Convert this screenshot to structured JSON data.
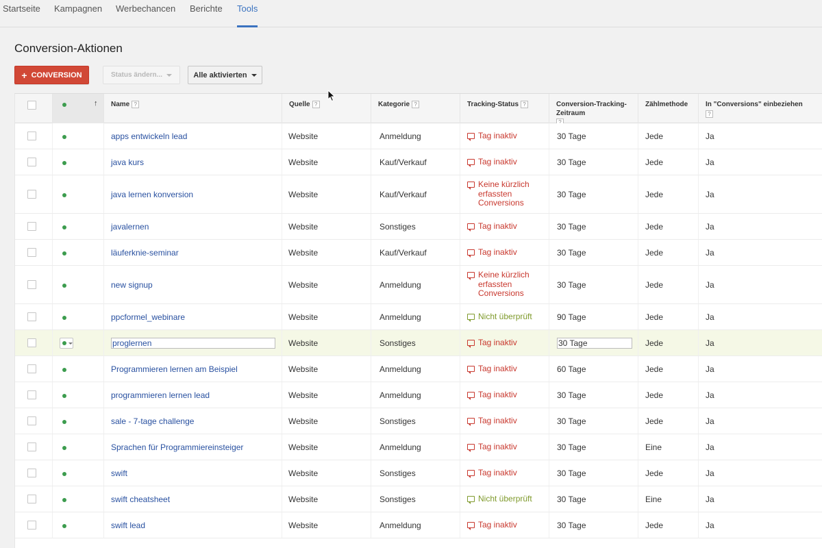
{
  "nav": {
    "tabs": [
      {
        "label": "Startseite"
      },
      {
        "label": "Kampagnen"
      },
      {
        "label": "Werbechancen"
      },
      {
        "label": "Berichte"
      },
      {
        "label": "Tools",
        "active": true
      }
    ]
  },
  "page": {
    "title": "Conversion-Aktionen"
  },
  "toolbar": {
    "add_label": "CONVERSION",
    "add_icon": "plus-icon",
    "status_label": "Status ändern...",
    "filter_label": "Alle aktivierten"
  },
  "table": {
    "columns": {
      "name": "Name",
      "source": "Quelle",
      "category": "Kategorie",
      "tracking": "Tracking-Status",
      "window": "Conversion-Tracking-Zeitraum",
      "counting": "Zählmethode",
      "include": "In \"Conversions\" einbeziehen"
    },
    "help_glyph": "?",
    "sort_arrow": "↑",
    "rows": [
      {
        "name": "apps entwickeln lead",
        "source": "Website",
        "category": "Anmeldung",
        "status": "Tag inaktiv",
        "status_type": "error",
        "window": "30 Tage",
        "counting": "Jede",
        "include": "Ja"
      },
      {
        "name": "java kurs",
        "source": "Website",
        "category": "Kauf/Verkauf",
        "status": "Tag inaktiv",
        "status_type": "error",
        "window": "30 Tage",
        "counting": "Jede",
        "include": "Ja"
      },
      {
        "name": "java lernen konversion",
        "source": "Website",
        "category": "Kauf/Verkauf",
        "status": "Keine kürzlich erfassten Conversions",
        "status_type": "error",
        "window": "30 Tage",
        "counting": "Jede",
        "include": "Ja"
      },
      {
        "name": "javalernen",
        "source": "Website",
        "category": "Sonstiges",
        "status": "Tag inaktiv",
        "status_type": "error",
        "window": "30 Tage",
        "counting": "Jede",
        "include": "Ja"
      },
      {
        "name": "läuferknie-seminar",
        "source": "Website",
        "category": "Kauf/Verkauf",
        "status": "Tag inaktiv",
        "status_type": "error",
        "window": "30 Tage",
        "counting": "Jede",
        "include": "Ja"
      },
      {
        "name": "new signup",
        "source": "Website",
        "category": "Anmeldung",
        "status": "Keine kürzlich erfassten Conversions",
        "status_type": "error",
        "window": "30 Tage",
        "counting": "Jede",
        "include": "Ja"
      },
      {
        "name": "ppcformel_webinare",
        "source": "Website",
        "category": "Anmeldung",
        "status": "Nicht überprüft",
        "status_type": "unverified",
        "window": "90 Tage",
        "counting": "Jede",
        "include": "Ja"
      },
      {
        "name": "proglernen",
        "source": "Website",
        "category": "Sonstiges",
        "status": "Tag inaktiv",
        "status_type": "error",
        "window": "30 Tage",
        "counting": "Jede",
        "include": "Ja",
        "editing": true
      },
      {
        "name": "Programmieren lernen am Beispiel",
        "source": "Website",
        "category": "Anmeldung",
        "status": "Tag inaktiv",
        "status_type": "error",
        "window": "60 Tage",
        "counting": "Jede",
        "include": "Ja"
      },
      {
        "name": "programmieren lernen lead",
        "source": "Website",
        "category": "Anmeldung",
        "status": "Tag inaktiv",
        "status_type": "error",
        "window": "30 Tage",
        "counting": "Jede",
        "include": "Ja"
      },
      {
        "name": "sale - 7-tage challenge",
        "source": "Website",
        "category": "Sonstiges",
        "status": "Tag inaktiv",
        "status_type": "error",
        "window": "30 Tage",
        "counting": "Jede",
        "include": "Ja"
      },
      {
        "name": "Sprachen für Programmiereinsteiger",
        "source": "Website",
        "category": "Anmeldung",
        "status": "Tag inaktiv",
        "status_type": "error",
        "window": "30 Tage",
        "counting": "Eine",
        "include": "Ja"
      },
      {
        "name": "swift",
        "source": "Website",
        "category": "Sonstiges",
        "status": "Tag inaktiv",
        "status_type": "error",
        "window": "30 Tage",
        "counting": "Jede",
        "include": "Ja"
      },
      {
        "name": "swift cheatsheet",
        "source": "Website",
        "category": "Sonstiges",
        "status": "Nicht überprüft",
        "status_type": "unverified",
        "window": "30 Tage",
        "counting": "Eine",
        "include": "Ja"
      },
      {
        "name": "swift lead",
        "source": "Website",
        "category": "Anmeldung",
        "status": "Tag inaktiv",
        "status_type": "error",
        "window": "30 Tage",
        "counting": "Jede",
        "include": "Ja"
      }
    ]
  },
  "colors": {
    "accent": "#3b73c0",
    "primary_button": "#d14836",
    "link": "#2850a0",
    "error": "#c8372d",
    "unverified": "#7f9a2c",
    "enabled_dot": "#3c9c4e",
    "highlight_row": "#f5f8e6"
  },
  "icons": {
    "status_dot": "status-dot-icon",
    "tracking_status": "speech-bubble-icon",
    "cursor": "mouse-pointer-icon"
  }
}
